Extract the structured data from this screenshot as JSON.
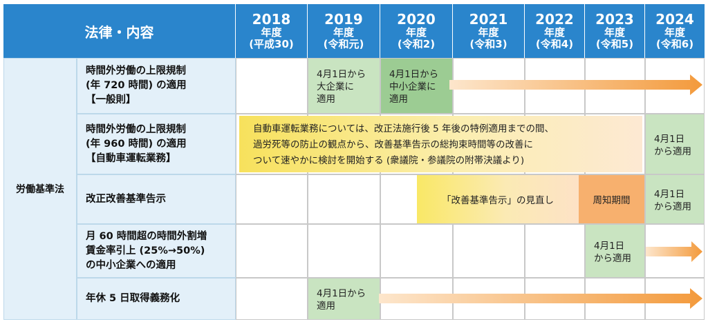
{
  "header": {
    "law_col": "法律・内容",
    "years": [
      {
        "year": "2018",
        "nendo": "年度",
        "era": "(平成30)"
      },
      {
        "year": "2019",
        "nendo": "年度",
        "era": "(令和元)"
      },
      {
        "year": "2020",
        "nendo": "年度",
        "era": "(令和2)"
      },
      {
        "year": "2021",
        "nendo": "年度",
        "era": "(令和3)"
      },
      {
        "year": "2022",
        "nendo": "年度",
        "era": "(令和4)"
      },
      {
        "year": "2023",
        "nendo": "年度",
        "era": "(令和5)"
      },
      {
        "year": "2024",
        "nendo": "年度",
        "era": "(令和6)"
      }
    ]
  },
  "category": "労働基準法",
  "rows": [
    {
      "name_lines": [
        "時間外労働の上限規制",
        "(年 720 時間) の適用",
        "【一般則】"
      ],
      "box_2019": [
        "4月1日から",
        "大企業に",
        "適用"
      ],
      "box_2020": [
        "4月1日から",
        "中小企業に",
        "適用"
      ]
    },
    {
      "name_lines": [
        "時間外労働の上限規制",
        "(年 960 時間) の適用",
        "【自動車運転業務】"
      ],
      "note_lines": [
        "自動車運転業務については、改正法施行後 5 年後の特例適用までの間、",
        "過労死等の防止の観点から、改善基準告示の総拘束時間等の改善に",
        "ついて速やかに検討を開始する (衆議院・参議院の附帯決議より)"
      ],
      "box_2024": [
        "4月1日",
        "から適用"
      ]
    },
    {
      "name_lines": [
        "改正改善基準告示"
      ],
      "review_label": "「改善基準告示」の見直し",
      "notice_label": "周知期間",
      "box_2024": [
        "4月1日",
        "から適用"
      ]
    },
    {
      "name_lines": [
        "月 60 時間超の時間外割増",
        "賃金率引上 (25%→50%)",
        "の中小企業への適用"
      ],
      "box_2023": [
        "4月1日",
        "から適用"
      ]
    },
    {
      "name_lines": [
        "年休 5 日取得義務化"
      ],
      "box_2019": [
        "4月1日から",
        "適用"
      ]
    }
  ],
  "colors": {
    "header_blue": "#2a85cc",
    "label_bg": "#e3f0f9",
    "green_light": "#c9e4c1",
    "green_mid": "#9ccc93",
    "yellow": "#f7e15c",
    "orange": "#f7b06e",
    "arrow_orange": "#f39a3c"
  }
}
